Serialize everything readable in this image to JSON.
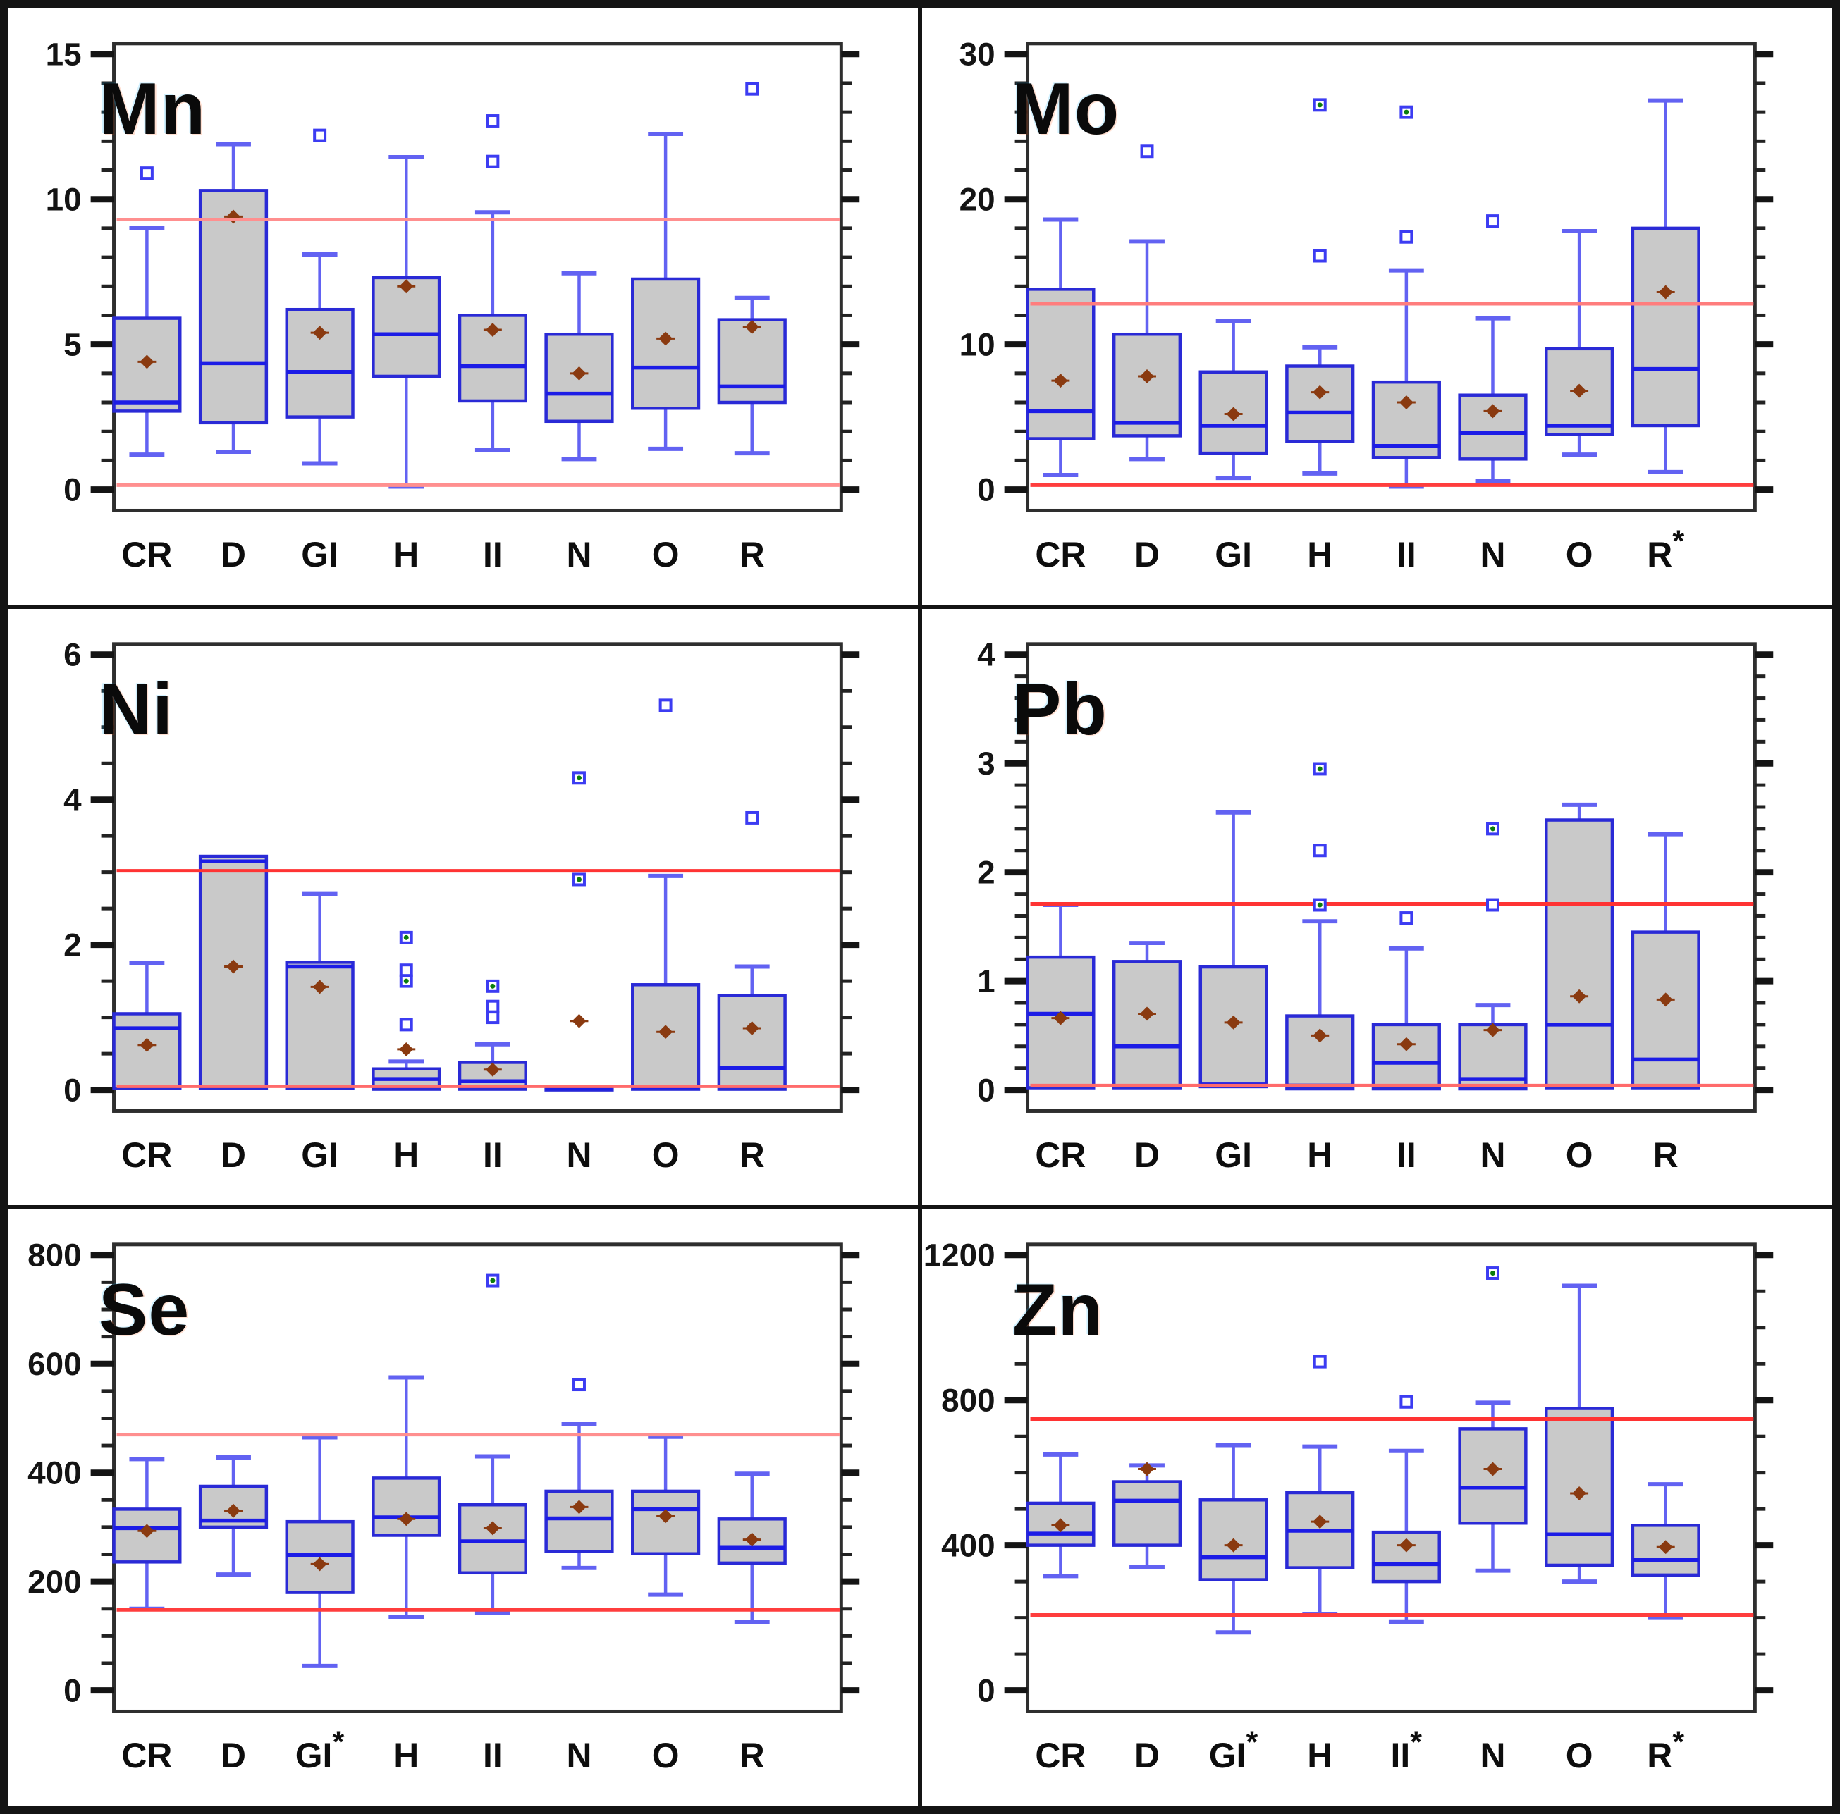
{
  "figure": {
    "background": "#ffffff",
    "border_color": "#141414",
    "grid": {
      "rows": 3,
      "cols": 2
    }
  },
  "styles": {
    "box_fill": "#c9c9c9",
    "box_stroke": "#2a2ad6",
    "median_color": "#1c1ce6",
    "whisker_color": "#6262f2",
    "mean_color": "#8a3a10",
    "outlier_stroke": "#3c3cf2",
    "outlier_green": "#0b7d0b",
    "axis_color": "#2e2e2e",
    "tick_color": "#141414"
  },
  "chart_data": [
    {
      "type": "box",
      "title": "Mn",
      "ylim": [
        0,
        15
      ],
      "yticks": [
        0,
        5,
        10,
        15
      ],
      "ytick_minor": 1,
      "xlabel": "",
      "ylabel": "",
      "grid": "off",
      "legend": "none",
      "ref_lines": [
        {
          "value": 9.3,
          "color": "#ff8f8f"
        },
        {
          "value": 0.15,
          "color": "#ff8f8f"
        }
      ],
      "categories": [
        "CR",
        "D",
        "GI",
        "H",
        "II",
        "N",
        "O",
        "R"
      ],
      "boxes": [
        {
          "label": "CR",
          "low": 1.2,
          "q1": 2.7,
          "median": 3.0,
          "q3": 5.9,
          "high": 9.0,
          "mean": 4.4,
          "outliers": [
            10.9
          ]
        },
        {
          "label": "D",
          "low": 1.3,
          "q1": 2.3,
          "median": 4.35,
          "q3": 10.3,
          "high": 11.9,
          "mean": 9.4,
          "outliers": []
        },
        {
          "label": "GI",
          "low": 0.9,
          "q1": 2.5,
          "median": 4.05,
          "q3": 6.2,
          "high": 8.1,
          "mean": 5.4,
          "outliers": [
            12.2
          ]
        },
        {
          "label": "H",
          "low": 0.1,
          "q1": 3.9,
          "median": 5.35,
          "q3": 7.3,
          "high": 11.45,
          "mean": 7.0,
          "outliers": []
        },
        {
          "label": "II",
          "low": 1.35,
          "q1": 3.05,
          "median": 4.25,
          "q3": 6.0,
          "high": 9.55,
          "mean": 5.5,
          "outliers": [
            12.7,
            11.3
          ]
        },
        {
          "label": "N",
          "low": 1.05,
          "q1": 2.35,
          "median": 3.3,
          "q3": 5.35,
          "high": 7.45,
          "mean": 4.0,
          "outliers": []
        },
        {
          "label": "O",
          "low": 1.4,
          "q1": 2.8,
          "median": 4.2,
          "q3": 7.25,
          "high": 12.25,
          "mean": 5.2,
          "outliers": []
        },
        {
          "label": "R",
          "low": 1.25,
          "q1": 3.0,
          "median": 3.55,
          "q3": 5.85,
          "high": 6.6,
          "mean": 5.6,
          "outliers": [
            13.8
          ]
        }
      ]
    },
    {
      "type": "box",
      "title": "Mo",
      "ylim": [
        0,
        30
      ],
      "yticks": [
        0,
        10,
        20,
        30
      ],
      "ytick_minor": 2,
      "xlabel": "",
      "ylabel": "",
      "grid": "off",
      "legend": "none",
      "ref_lines": [
        {
          "value": 12.8,
          "color": "#ff7d7d"
        },
        {
          "value": 0.3,
          "color": "#ff3d3d"
        }
      ],
      "categories": [
        "CR",
        "D",
        "GI",
        "H",
        "II",
        "N",
        "O",
        "R*"
      ],
      "boxes": [
        {
          "label": "CR",
          "low": 1.0,
          "q1": 3.5,
          "median": 5.4,
          "q3": 13.8,
          "high": 18.6,
          "mean": 7.5,
          "outliers": []
        },
        {
          "label": "D",
          "low": 2.1,
          "q1": 3.7,
          "median": 4.6,
          "q3": 10.7,
          "high": 17.1,
          "mean": 7.8,
          "outliers": [
            23.3
          ]
        },
        {
          "label": "GI",
          "low": 0.8,
          "q1": 2.5,
          "median": 4.4,
          "q3": 8.1,
          "high": 11.6,
          "mean": 5.2,
          "outliers": []
        },
        {
          "label": "H",
          "low": 1.1,
          "q1": 3.3,
          "median": 5.3,
          "q3": 8.5,
          "high": 9.8,
          "mean": 6.7,
          "outliers": [
            {
              "v": 26.5,
              "g": true
            },
            16.1
          ]
        },
        {
          "label": "II",
          "low": 0.2,
          "q1": 2.2,
          "median": 3.0,
          "q3": 7.4,
          "high": 15.1,
          "mean": 6.0,
          "outliers": [
            {
              "v": 26.0,
              "g": true
            },
            17.4
          ]
        },
        {
          "label": "N",
          "low": 0.6,
          "q1": 2.1,
          "median": 3.9,
          "q3": 6.5,
          "high": 11.8,
          "mean": 5.4,
          "outliers": [
            18.5
          ]
        },
        {
          "label": "O",
          "low": 2.4,
          "q1": 3.8,
          "median": 4.4,
          "q3": 9.7,
          "high": 17.8,
          "mean": 6.8,
          "outliers": []
        },
        {
          "label": "R",
          "star": true,
          "low": 1.2,
          "q1": 4.4,
          "median": 8.3,
          "q3": 18.0,
          "high": 26.8,
          "mean": 13.6,
          "outliers": []
        }
      ]
    },
    {
      "type": "box",
      "title": "Ni",
      "ylim": [
        0,
        6
      ],
      "yticks": [
        0,
        2,
        4,
        6
      ],
      "ytick_minor": 0.5,
      "xlabel": "",
      "ylabel": "",
      "grid": "off",
      "legend": "none",
      "ref_lines": [
        {
          "value": 3.02,
          "color": "#ff3333"
        },
        {
          "value": 0.05,
          "color": "#ff6b6b"
        }
      ],
      "categories": [
        "CR",
        "D",
        "GI",
        "H",
        "II",
        "N",
        "O",
        "R"
      ],
      "boxes": [
        {
          "label": "CR",
          "low": 0.02,
          "q1": 0.02,
          "median": 0.85,
          "q3": 1.05,
          "high": 1.75,
          "mean": 0.62,
          "outliers": []
        },
        {
          "label": "D",
          "low": 0.02,
          "q1": 0.02,
          "median": 3.15,
          "q3": 3.22,
          "high": 3.22,
          "mean": 1.7,
          "outliers": []
        },
        {
          "label": "GI",
          "low": 0.02,
          "q1": 0.02,
          "median": 1.7,
          "q3": 1.76,
          "high": 2.7,
          "mean": 1.42,
          "outliers": []
        },
        {
          "label": "H",
          "low": 0.01,
          "q1": 0.01,
          "median": 0.15,
          "q3": 0.29,
          "high": 0.39,
          "mean": 0.56,
          "outliers": [
            {
              "v": 2.1,
              "g": true
            },
            1.65,
            {
              "v": 1.5,
              "g": true
            },
            0.9
          ]
        },
        {
          "label": "II",
          "low": 0.01,
          "q1": 0.01,
          "median": 0.12,
          "q3": 0.38,
          "high": 0.63,
          "mean": 0.28,
          "outliers": [
            {
              "v": 1.43,
              "g": true
            },
            1.15,
            1.0
          ]
        },
        {
          "label": "N",
          "low": 0.0,
          "q1": 0.0,
          "median": 0.02,
          "q3": 0.05,
          "high": 0.05,
          "mean": 0.95,
          "outliers": [
            {
              "v": 4.3,
              "g": true
            },
            {
              "v": 2.9,
              "g": true
            }
          ]
        },
        {
          "label": "O",
          "low": 0.01,
          "q1": 0.01,
          "median": 0.04,
          "q3": 1.45,
          "high": 2.95,
          "mean": 0.8,
          "outliers": [
            5.3
          ]
        },
        {
          "label": "R",
          "low": 0.01,
          "q1": 0.01,
          "median": 0.3,
          "q3": 1.3,
          "high": 1.7,
          "mean": 0.85,
          "outliers": [
            3.75
          ]
        }
      ]
    },
    {
      "type": "box",
      "title": "Pb",
      "ylim": [
        0,
        4
      ],
      "yticks": [
        0,
        1,
        2,
        3,
        4
      ],
      "ytick_minor": 0.2,
      "xlabel": "",
      "ylabel": "",
      "grid": "off",
      "legend": "none",
      "ref_lines": [
        {
          "value": 1.71,
          "color": "#ff3333"
        },
        {
          "value": 0.04,
          "color": "#ff6b6b"
        }
      ],
      "categories": [
        "CR",
        "D",
        "GI",
        "H",
        "II",
        "N",
        "O",
        "R"
      ],
      "boxes": [
        {
          "label": "CR",
          "low": 0.02,
          "q1": 0.02,
          "median": 0.7,
          "q3": 1.22,
          "high": 1.7,
          "mean": 0.66,
          "outliers": []
        },
        {
          "label": "D",
          "low": 0.02,
          "q1": 0.02,
          "median": 0.4,
          "q3": 1.18,
          "high": 1.35,
          "mean": 0.7,
          "outliers": []
        },
        {
          "label": "GI",
          "low": 0.03,
          "q1": 0.03,
          "median": 0.05,
          "q3": 1.13,
          "high": 2.55,
          "mean": 0.62,
          "outliers": []
        },
        {
          "label": "H",
          "low": 0.01,
          "q1": 0.01,
          "median": 0.04,
          "q3": 0.68,
          "high": 1.55,
          "mean": 0.5,
          "outliers": [
            {
              "v": 2.95,
              "g": true
            },
            2.2,
            {
              "v": 1.7,
              "g": true
            }
          ]
        },
        {
          "label": "II",
          "low": 0.01,
          "q1": 0.01,
          "median": 0.25,
          "q3": 0.6,
          "high": 1.3,
          "mean": 0.42,
          "outliers": [
            1.58
          ]
        },
        {
          "label": "N",
          "low": 0.01,
          "q1": 0.01,
          "median": 0.1,
          "q3": 0.6,
          "high": 0.78,
          "mean": 0.55,
          "outliers": [
            {
              "v": 2.4,
              "g": true
            },
            1.7
          ]
        },
        {
          "label": "O",
          "low": 0.02,
          "q1": 0.02,
          "median": 0.6,
          "q3": 2.48,
          "high": 2.62,
          "mean": 0.86,
          "outliers": []
        },
        {
          "label": "R",
          "low": 0.02,
          "q1": 0.02,
          "median": 0.28,
          "q3": 1.45,
          "high": 2.35,
          "mean": 0.83,
          "outliers": []
        }
      ]
    },
    {
      "type": "box",
      "title": "Se",
      "ylim": [
        0,
        800
      ],
      "yticks": [
        0,
        200,
        400,
        600,
        800
      ],
      "ytick_minor": 50,
      "xlabel": "",
      "ylabel": "",
      "grid": "off",
      "legend": "none",
      "ref_lines": [
        {
          "value": 470,
          "color": "#ff8f8f"
        },
        {
          "value": 148,
          "color": "#ff3d3d"
        }
      ],
      "categories": [
        "CR",
        "D",
        "GI*",
        "H",
        "II",
        "N",
        "O",
        "R"
      ],
      "boxes": [
        {
          "label": "CR",
          "low": 150,
          "q1": 236,
          "median": 298,
          "q3": 333,
          "high": 425,
          "mean": 293,
          "outliers": []
        },
        {
          "label": "D",
          "low": 213,
          "q1": 300,
          "median": 312,
          "q3": 375,
          "high": 428,
          "mean": 330,
          "outliers": []
        },
        {
          "label": "GI",
          "star": true,
          "low": 45,
          "q1": 180,
          "median": 249,
          "q3": 310,
          "high": 465,
          "mean": 232,
          "outliers": []
        },
        {
          "label": "H",
          "low": 135,
          "q1": 285,
          "median": 318,
          "q3": 390,
          "high": 575,
          "mean": 315,
          "outliers": []
        },
        {
          "label": "II",
          "low": 143,
          "q1": 216,
          "median": 274,
          "q3": 341,
          "high": 430,
          "mean": 298,
          "outliers": [
            {
              "v": 753,
              "g": true
            }
          ]
        },
        {
          "label": "N",
          "low": 225,
          "q1": 255,
          "median": 316,
          "q3": 366,
          "high": 489,
          "mean": 337,
          "outliers": [
            562
          ]
        },
        {
          "label": "O",
          "low": 176,
          "q1": 251,
          "median": 333,
          "q3": 366,
          "high": 466,
          "mean": 320,
          "outliers": []
        },
        {
          "label": "R",
          "low": 125,
          "q1": 234,
          "median": 262,
          "q3": 315,
          "high": 398,
          "mean": 277,
          "outliers": []
        }
      ]
    },
    {
      "type": "box",
      "title": "Zn",
      "ylim": [
        0,
        1200
      ],
      "yticks": [
        0,
        400,
        800,
        1200
      ],
      "ytick_minor": 100,
      "xlabel": "",
      "ylabel": "",
      "grid": "off",
      "legend": "none",
      "ref_lines": [
        {
          "value": 748,
          "color": "#ff3333"
        },
        {
          "value": 208,
          "color": "#ff3d3d"
        }
      ],
      "categories": [
        "CR",
        "D",
        "GI*",
        "H",
        "II*",
        "N",
        "O",
        "R*"
      ],
      "boxes": [
        {
          "label": "CR",
          "low": 315,
          "q1": 400,
          "median": 432,
          "q3": 516,
          "high": 650,
          "mean": 455,
          "outliers": []
        },
        {
          "label": "D",
          "low": 340,
          "q1": 400,
          "median": 523,
          "q3": 575,
          "high": 620,
          "mean": 610,
          "outliers": []
        },
        {
          "label": "GI",
          "star": true,
          "low": 160,
          "q1": 305,
          "median": 367,
          "q3": 525,
          "high": 676,
          "mean": 400,
          "outliers": []
        },
        {
          "label": "H",
          "low": 210,
          "q1": 338,
          "median": 440,
          "q3": 545,
          "high": 672,
          "mean": 465,
          "outliers": [
            906
          ]
        },
        {
          "label": "II",
          "star": true,
          "low": 188,
          "q1": 300,
          "median": 348,
          "q3": 436,
          "high": 660,
          "mean": 400,
          "outliers": [
            795
          ]
        },
        {
          "label": "N",
          "low": 330,
          "q1": 461,
          "median": 559,
          "q3": 721,
          "high": 793,
          "mean": 610,
          "outliers": [
            {
              "v": 1150,
              "g": true
            }
          ]
        },
        {
          "label": "O",
          "low": 300,
          "q1": 345,
          "median": 430,
          "q3": 777,
          "high": 1115,
          "mean": 543,
          "outliers": []
        },
        {
          "label": "R",
          "star": true,
          "low": 200,
          "q1": 318,
          "median": 359,
          "q3": 455,
          "high": 568,
          "mean": 395,
          "outliers": []
        }
      ]
    }
  ]
}
